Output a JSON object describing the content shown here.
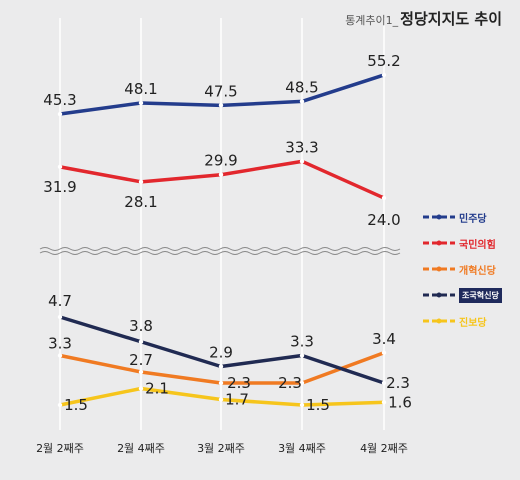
{
  "header": {
    "prefix": "통계추이1_",
    "title": "정당지지도 추이"
  },
  "chart_data": {
    "type": "line",
    "title": "정당지지도 추이",
    "categories": [
      "2월 2째주",
      "2월 4째주",
      "3월 2째주",
      "3월 4째주",
      "4월 2째주"
    ],
    "axis_break": true,
    "grid": true,
    "legend_position": "right",
    "series": [
      {
        "name": "민주당",
        "color": "#233c8c",
        "group": "upper",
        "values": [
          45.3,
          48.1,
          47.5,
          48.5,
          55.2
        ]
      },
      {
        "name": "국민의힘",
        "color": "#e2272d",
        "group": "upper",
        "values": [
          31.9,
          28.1,
          29.9,
          33.3,
          24.0
        ]
      },
      {
        "name": "개혁신당",
        "color": "#f07a22",
        "group": "lower",
        "values": [
          3.3,
          2.7,
          2.3,
          2.3,
          3.4
        ]
      },
      {
        "name": "조국혁신당",
        "color": "#202a52",
        "group": "lower",
        "values": [
          4.7,
          3.8,
          2.9,
          3.3,
          2.3
        ]
      },
      {
        "name": "진보당",
        "color": "#f6c51c",
        "group": "lower",
        "values": [
          1.5,
          2.1,
          1.7,
          1.5,
          1.6
        ]
      }
    ]
  }
}
